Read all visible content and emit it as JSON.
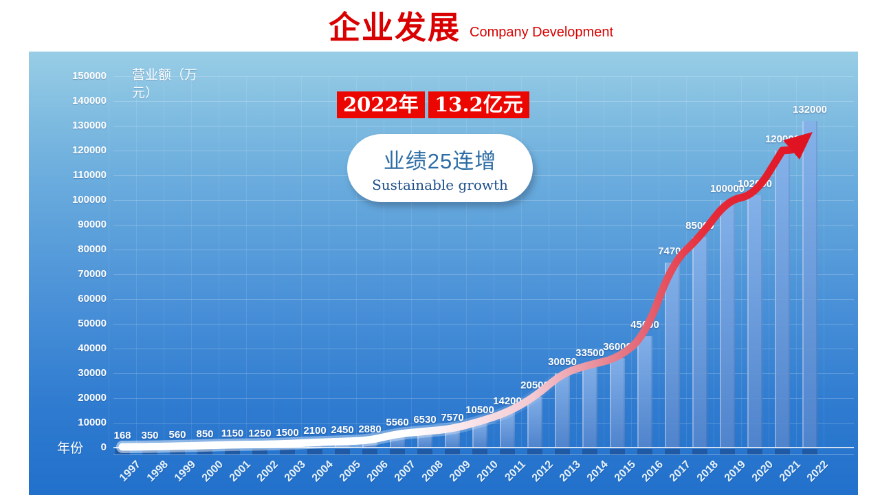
{
  "title": {
    "cn": "企业发展",
    "en": "Company Development"
  },
  "callout": {
    "year_chip": "2022年",
    "amount_chip": "13.2亿元",
    "bubble_line1": "业绩25连增",
    "bubble_line2": "Sustainable growth"
  },
  "chart_data": {
    "type": "bar",
    "title": "企业发展 Company Development",
    "xlabel": "年份",
    "ylabel": "营业额（万元）",
    "ylabel_lines": [
      "营业额（万",
      "元）"
    ],
    "categories": [
      "1997",
      "1998",
      "1999",
      "2000",
      "2001",
      "2002",
      "2003",
      "2004",
      "2005",
      "2006",
      "2007",
      "2008",
      "2009",
      "2010",
      "2011",
      "2012",
      "2013",
      "2014",
      "2015",
      "2016",
      "2017",
      "2018",
      "2019",
      "2020",
      "2021",
      "2022"
    ],
    "values": [
      168,
      350,
      560,
      850,
      1150,
      1250,
      1500,
      2100,
      2450,
      2880,
      5560,
      6530,
      7570,
      10500,
      14200,
      20500,
      30050,
      33500,
      36000,
      45000,
      74700,
      85000,
      100000,
      102000,
      120000,
      132000
    ],
    "ylim": [
      0,
      150000
    ],
    "ytick_step": 10000,
    "grid": true,
    "legend": "none",
    "annotations": [
      "2022年 13.2亿元",
      "业绩25连增 Sustainable growth"
    ],
    "trend_arrow": "white-to-red curve following bar tops, red arrowhead at 2022"
  },
  "colors": {
    "title_red": "#d90000",
    "chip_bg": "#ec0600",
    "chip_text": "#ffffff",
    "panel_top": "#98cde5",
    "panel_bottom": "#2170cb",
    "bar_fill": "#5f95d8",
    "bubble_text": "#2d6da5",
    "arrow_red": "#e01322",
    "axis_text": "#ffffff"
  }
}
